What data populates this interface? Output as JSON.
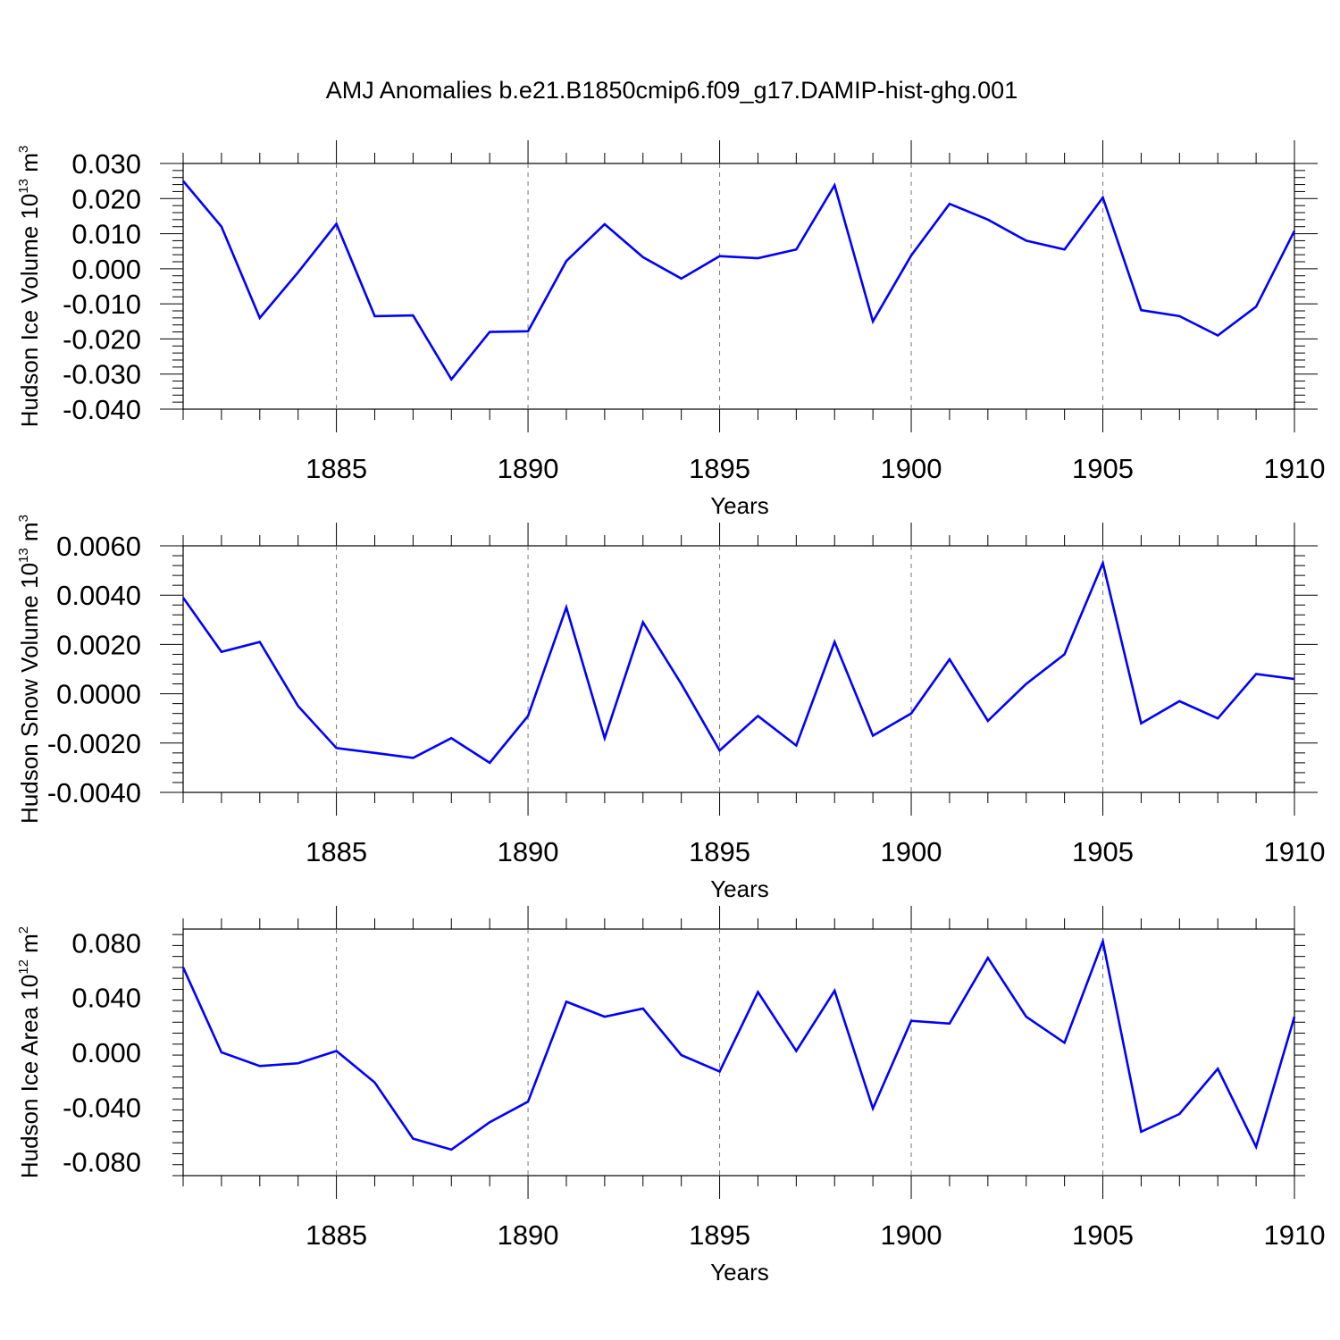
{
  "figure": {
    "title": "AMJ Anomalies b.e21.B1850cmip6.f09_g17.DAMIP-hist-ghg.001"
  },
  "colors": {
    "line": "#0000ff",
    "axis": "#000000",
    "grid": "#777777"
  },
  "chart_data": [
    {
      "type": "line",
      "ylabel_main": "Hudson Ice Volume 10",
      "ylabel_exp": "13",
      "ylabel_unit": " m",
      "ylabel_unit_exp": "3",
      "xlabel": "Years",
      "xlim": [
        1881,
        1910
      ],
      "ylim": [
        -0.04,
        0.03
      ],
      "yticks": [
        0.03,
        0.02,
        0.01,
        0.0,
        -0.01,
        -0.02,
        -0.03,
        -0.04
      ],
      "ytick_labels": [
        "0.030",
        "0.020",
        "0.010",
        "0.000",
        "-0.010",
        "-0.020",
        "-0.030",
        "-0.040"
      ],
      "xticks": [
        1885,
        1890,
        1895,
        1900,
        1905,
        1910
      ],
      "xtick_labels": [
        "1885",
        "1890",
        "1895",
        "1900",
        "1905",
        "1910"
      ],
      "grid": "vertical dashed at major x ticks",
      "x": [
        1881,
        1882,
        1883,
        1884,
        1885,
        1886,
        1887,
        1888,
        1889,
        1890,
        1891,
        1892,
        1893,
        1894,
        1895,
        1896,
        1897,
        1898,
        1899,
        1900,
        1901,
        1902,
        1903,
        1904,
        1905,
        1906,
        1907,
        1908,
        1909,
        1910
      ],
      "values": [
        0.025,
        0.012,
        -0.014,
        -0.001,
        0.0128,
        -0.0135,
        -0.0133,
        -0.0315,
        -0.018,
        -0.0178,
        0.0022,
        0.0127,
        0.0033,
        -0.0028,
        0.0036,
        0.003,
        0.0055,
        0.0238,
        -0.015,
        0.0038,
        0.0185,
        0.014,
        0.008,
        0.0055,
        0.0203,
        -0.0118,
        -0.0135,
        -0.019,
        -0.0108,
        0.0108
      ]
    },
    {
      "type": "line",
      "ylabel_main": "Hudson Snow Volume 10",
      "ylabel_exp": "13",
      "ylabel_unit": " m",
      "ylabel_unit_exp": "3",
      "xlabel": "Years",
      "xlim": [
        1881,
        1910
      ],
      "ylim": [
        -0.004,
        0.006
      ],
      "yticks": [
        0.006,
        0.004,
        0.002,
        0.0,
        -0.002,
        -0.004
      ],
      "ytick_labels": [
        "0.0060",
        "0.0040",
        "0.0020",
        "0.0000",
        "-0.0020",
        "-0.0040"
      ],
      "xticks": [
        1885,
        1890,
        1895,
        1900,
        1905,
        1910
      ],
      "xtick_labels": [
        "1885",
        "1890",
        "1895",
        "1900",
        "1905",
        "1910"
      ],
      "grid": "vertical dashed at major x ticks",
      "x": [
        1881,
        1882,
        1883,
        1884,
        1885,
        1886,
        1887,
        1888,
        1889,
        1890,
        1891,
        1892,
        1893,
        1894,
        1895,
        1896,
        1897,
        1898,
        1899,
        1900,
        1901,
        1902,
        1903,
        1904,
        1905,
        1906,
        1907,
        1908,
        1909,
        1910
      ],
      "values": [
        0.0039,
        0.0017,
        0.0021,
        -0.0005,
        -0.0022,
        -0.0024,
        -0.0026,
        -0.0018,
        -0.0028,
        -0.0009,
        0.0035,
        -0.0018,
        0.0029,
        0.0004,
        -0.0023,
        -0.0009,
        -0.0021,
        0.0021,
        -0.0017,
        -0.0008,
        0.0014,
        -0.0011,
        0.0004,
        0.0016,
        0.0053,
        -0.0012,
        -0.0003,
        -0.001,
        0.0008,
        0.0006
      ]
    },
    {
      "type": "line",
      "ylabel_main": "Hudson Ice Area 10",
      "ylabel_exp": "12",
      "ylabel_unit": " m",
      "ylabel_unit_exp": "2",
      "xlabel": "Years",
      "xlim": [
        1881,
        1910
      ],
      "ylim": [
        -0.09,
        0.09
      ],
      "yticks": [
        0.08,
        0.04,
        0.0,
        -0.04,
        -0.08
      ],
      "ytick_labels": [
        "0.080",
        "0.040",
        "0.000",
        "-0.040",
        "-0.080"
      ],
      "xticks": [
        1885,
        1890,
        1895,
        1900,
        1905,
        1910
      ],
      "xtick_labels": [
        "1885",
        "1890",
        "1895",
        "1900",
        "1905",
        "1910"
      ],
      "grid": "vertical dashed at major x ticks",
      "x": [
        1881,
        1882,
        1883,
        1884,
        1885,
        1886,
        1887,
        1888,
        1889,
        1890,
        1891,
        1892,
        1893,
        1894,
        1895,
        1896,
        1897,
        1898,
        1899,
        1900,
        1901,
        1902,
        1903,
        1904,
        1905,
        1906,
        1907,
        1908,
        1909,
        1910
      ],
      "values": [
        0.062,
        0.0,
        -0.01,
        -0.008,
        0.001,
        -0.022,
        -0.063,
        -0.071,
        -0.051,
        -0.036,
        0.037,
        0.026,
        0.032,
        -0.002,
        -0.014,
        0.044,
        0.001,
        0.045,
        -0.041,
        0.023,
        0.021,
        0.069,
        0.026,
        0.007,
        0.081,
        -0.058,
        -0.045,
        -0.012,
        -0.069,
        0.026
      ]
    }
  ]
}
